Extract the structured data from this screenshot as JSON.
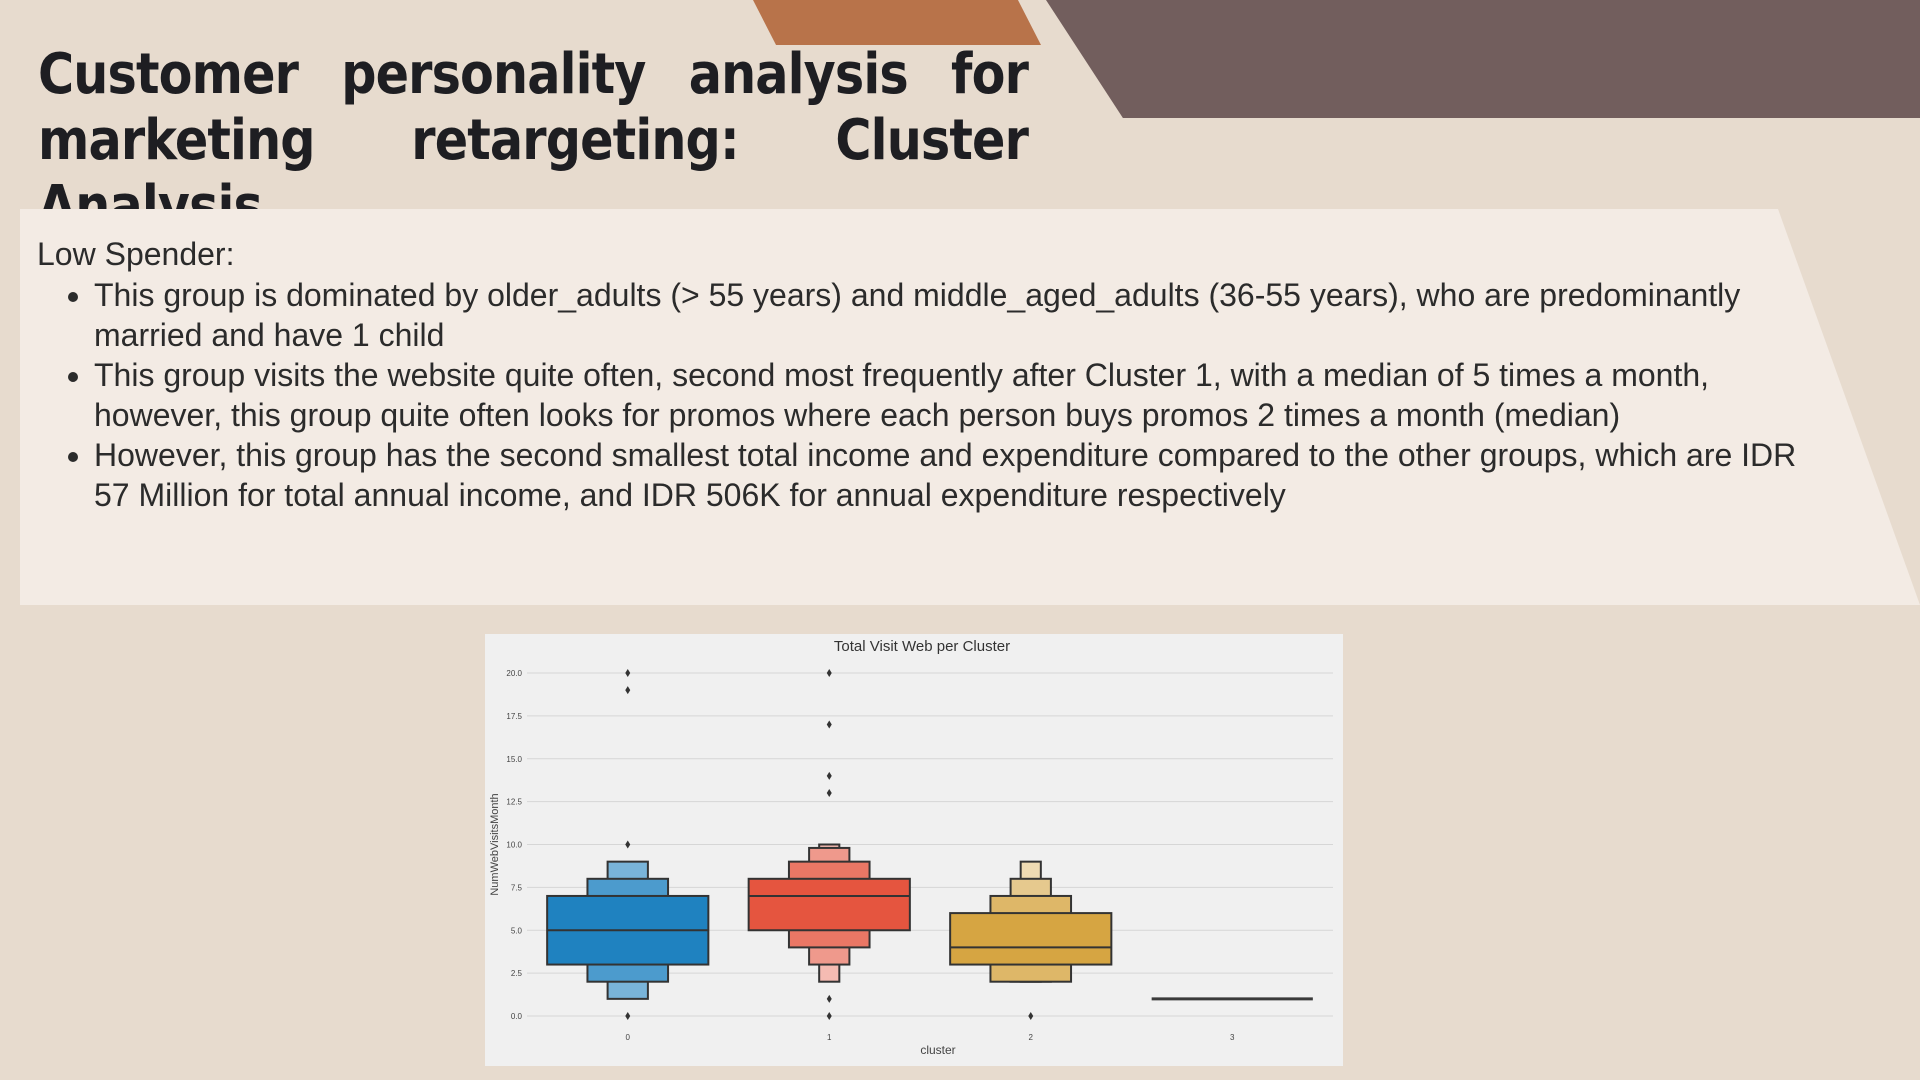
{
  "slide": {
    "title": "Customer personality analysis for marketing retargeting: Cluster Analysis",
    "section_heading": "Low Spender:",
    "bullets": [
      "This group is dominated by older_adults (> 55 years) and middle_aged_adults (36-55 years), who are predominantly married and have 1 child",
      "This group visits the website quite often, second most frequently after Cluster 1, with a median of 5 times a month, however, this group quite often looks for promos where each person buys promos 2 times a month (median)",
      "However, this group has the second smallest total income and expenditure compared to the other groups, which are IDR 57 Million for total annual income, and IDR 506K for annual expenditure respectively"
    ],
    "colors": {
      "background": "#e7dbce",
      "panel": "#f3ebe4",
      "accent_orange": "#b8734a",
      "accent_brown": "#725e5d"
    }
  },
  "chart_data": {
    "type": "boxen",
    "title": "Total Visit Web per Cluster",
    "xlabel": "cluster",
    "ylabel": "NumWebVisitsMonth",
    "categories": [
      "0",
      "1",
      "2",
      "3"
    ],
    "ylim": [
      0,
      20
    ],
    "yticks": [
      "0.0",
      "2.5",
      "5.0",
      "7.5",
      "10.0",
      "12.5",
      "15.0",
      "17.5",
      "20.0"
    ],
    "grid": true,
    "colors": [
      "#1f82c0",
      "#e5553f",
      "#d6a542",
      "#3a3a3a"
    ],
    "series": [
      {
        "cluster": "0",
        "median": 5,
        "levels": [
          {
            "low": 3,
            "high": 7
          },
          {
            "low": 2,
            "high": 8
          },
          {
            "low": 1,
            "high": 9
          }
        ],
        "outliers": [
          0,
          10,
          19,
          20
        ]
      },
      {
        "cluster": "1",
        "median": 7,
        "levels": [
          {
            "low": 5,
            "high": 8
          },
          {
            "low": 4,
            "high": 9
          },
          {
            "low": 3,
            "high": 9.8
          },
          {
            "low": 2,
            "high": 10
          }
        ],
        "outliers": [
          0,
          1,
          13,
          14,
          17,
          20
        ]
      },
      {
        "cluster": "2",
        "median": 4,
        "levels": [
          {
            "low": 3,
            "high": 6
          },
          {
            "low": 2,
            "high": 7
          },
          {
            "low": 2,
            "high": 8
          },
          {
            "low": 2,
            "high": 9
          }
        ],
        "outliers": [
          0
        ]
      },
      {
        "cluster": "3",
        "median": 1,
        "levels": [],
        "outliers": []
      }
    ]
  }
}
